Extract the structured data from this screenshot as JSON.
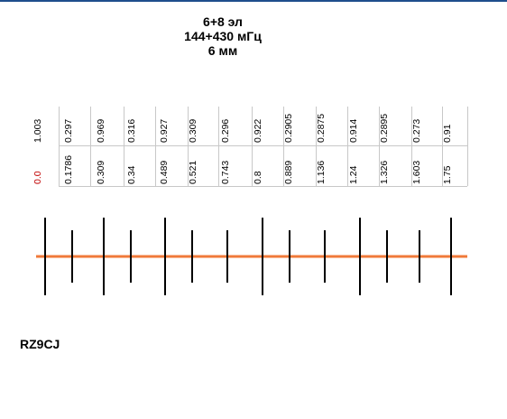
{
  "title": {
    "line1": "6+8 эл",
    "line2": "144+430 мГц",
    "line3": "6 мм"
  },
  "colors": {
    "boom": "#f07a3a",
    "element": "#000000",
    "origin": "#c00000"
  },
  "length_row": [
    "1.003",
    "0.297",
    "0.969",
    "0.316",
    "0.927",
    "0.309",
    "0.296",
    "0.922",
    "0.2905",
    "0.2875",
    "0.914",
    "0.2895",
    "0.273",
    "0.91"
  ],
  "position_row": [
    "0.0",
    "0.1786",
    "0.309",
    "0.34",
    "0.489",
    "0.521",
    "0.743",
    "0.8",
    "0.889",
    "1.136",
    "1.24",
    "1.326",
    "1.603",
    "1.75"
  ],
  "elements": [
    {
      "band": "144",
      "length": 1.003
    },
    {
      "band": "430",
      "length": 0.297
    },
    {
      "band": "144",
      "length": 0.969
    },
    {
      "band": "430",
      "length": 0.316
    },
    {
      "band": "144",
      "length": 0.927
    },
    {
      "band": "430",
      "length": 0.309
    },
    {
      "band": "430",
      "length": 0.296
    },
    {
      "band": "144",
      "length": 0.922
    },
    {
      "band": "430",
      "length": 0.2905
    },
    {
      "band": "430",
      "length": 0.2875
    },
    {
      "band": "144",
      "length": 0.914
    },
    {
      "band": "430",
      "length": 0.2895
    },
    {
      "band": "430",
      "length": 0.273
    },
    {
      "band": "144",
      "length": 0.91
    }
  ],
  "author": "RZ9CJ"
}
